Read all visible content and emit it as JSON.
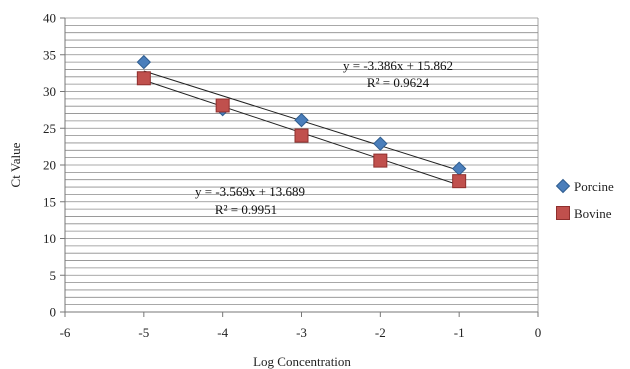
{
  "chart_data": {
    "type": "scatter",
    "xlabel": "Log Concentration",
    "ylabel": "Ct Value",
    "xlim": [
      -6,
      0
    ],
    "ylim": [
      0,
      40
    ],
    "x_ticks": [
      "-6",
      "-5",
      "-4",
      "-3",
      "-2",
      "-1",
      "0"
    ],
    "y_ticks": [
      "0",
      "5",
      "10",
      "15",
      "20",
      "25",
      "30",
      "35",
      "40"
    ],
    "minor_gridline_step": 1,
    "series": [
      {
        "name": "Porcine",
        "marker": "diamond",
        "color": "#4a7ebb",
        "x": [
          -5,
          -4,
          -3,
          -2,
          -1
        ],
        "y": [
          34.0,
          27.6,
          26.1,
          22.9,
          19.5
        ],
        "trendline": {
          "slope": -3.386,
          "intercept": 15.862,
          "equation": "y = -3.386x + 15.862",
          "r2": "R² = 0.9624"
        }
      },
      {
        "name": "Bovine",
        "marker": "square",
        "color": "#c0504d",
        "x": [
          -5,
          -4,
          -3,
          -2,
          -1
        ],
        "y": [
          31.8,
          28.1,
          24.0,
          20.6,
          17.8
        ],
        "trendline": {
          "slope": -3.569,
          "intercept": 13.689,
          "equation": "y = -3.569x + 13.689",
          "r2": "R² = 0.9951"
        }
      }
    ],
    "legend_position": "right",
    "grid": true
  }
}
